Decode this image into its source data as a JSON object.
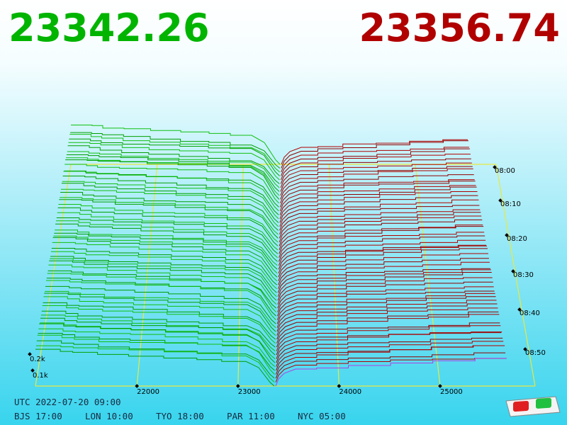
{
  "header": {
    "bid": "23342.26",
    "ask": "23356.74"
  },
  "price_axis": {
    "ticks": [
      "22000",
      "23000",
      "24000",
      "25000"
    ]
  },
  "time_axis": {
    "ticks": [
      "08:00",
      "08:10",
      "08:20",
      "08:30",
      "08:40",
      "08:50"
    ]
  },
  "depth_axis": {
    "ticks": [
      "0.2k",
      "0.1k"
    ]
  },
  "footer": {
    "utc": "UTC 2022-07-20 09:00",
    "cities": [
      "BJS 17:00",
      "LON 10:00",
      "TYO 18:00",
      "PAR 11:00",
      "NYC 05:00"
    ]
  }
}
